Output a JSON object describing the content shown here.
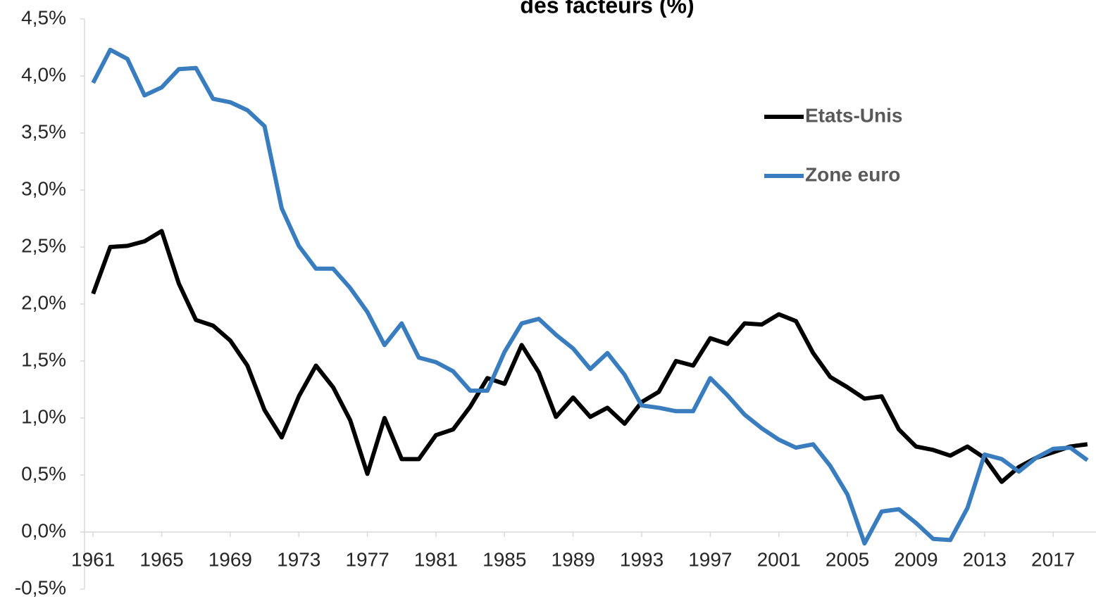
{
  "chart_data": {
    "type": "line",
    "title": "des facteurs (%)",
    "x": [
      1961,
      1962,
      1963,
      1964,
      1965,
      1966,
      1967,
      1968,
      1969,
      1970,
      1971,
      1972,
      1973,
      1974,
      1975,
      1976,
      1977,
      1978,
      1979,
      1980,
      1981,
      1982,
      1983,
      1984,
      1985,
      1986,
      1987,
      1988,
      1989,
      1990,
      1991,
      1992,
      1993,
      1994,
      1995,
      1996,
      1997,
      1998,
      1999,
      2000,
      2001,
      2002,
      2003,
      2004,
      2005,
      2006,
      2007,
      2008,
      2009,
      2010,
      2011,
      2012,
      2013,
      2014,
      2015,
      2016,
      2017,
      2018,
      2019
    ],
    "series": [
      {
        "name": "Etats-Unis",
        "color": "#000000",
        "values": [
          2.09,
          2.5,
          2.51,
          2.55,
          2.64,
          2.18,
          1.86,
          1.81,
          1.68,
          1.46,
          1.07,
          0.83,
          1.19,
          1.46,
          1.27,
          0.98,
          0.51,
          1.0,
          0.64,
          0.64,
          0.85,
          0.9,
          1.1,
          1.35,
          1.3,
          1.64,
          1.4,
          1.01,
          1.18,
          1.01,
          1.09,
          0.95,
          1.14,
          1.23,
          1.5,
          1.46,
          1.7,
          1.65,
          1.83,
          1.82,
          1.91,
          1.85,
          1.57,
          1.36,
          1.27,
          1.17,
          1.19,
          0.9,
          0.75,
          0.72,
          0.67,
          0.75,
          0.65,
          0.44,
          0.57,
          0.65,
          0.7,
          0.75,
          0.77
        ]
      },
      {
        "name": "Zone euro",
        "color": "#3a7dbf",
        "values": [
          3.94,
          4.23,
          4.15,
          3.83,
          3.9,
          4.06,
          4.07,
          3.8,
          3.77,
          3.7,
          3.56,
          2.84,
          2.51,
          2.31,
          2.31,
          2.14,
          1.93,
          1.64,
          1.83,
          1.53,
          1.49,
          1.41,
          1.24,
          1.24,
          1.58,
          1.83,
          1.87,
          1.73,
          1.61,
          1.43,
          1.57,
          1.38,
          1.11,
          1.09,
          1.06,
          1.06,
          1.35,
          1.2,
          1.03,
          0.91,
          0.81,
          0.74,
          0.77,
          0.58,
          0.33,
          -0.1,
          0.18,
          0.2,
          0.08,
          -0.06,
          -0.07,
          0.21,
          0.68,
          0.64,
          0.53,
          0.65,
          0.73,
          0.74,
          0.63
        ]
      }
    ],
    "xlim": [
      1960.5,
      2019.5
    ],
    "xticks": [
      1961,
      1965,
      1969,
      1973,
      1977,
      1981,
      1985,
      1989,
      1993,
      1997,
      2001,
      2005,
      2009,
      2013,
      2017
    ],
    "ylim": [
      -0.5,
      4.5
    ],
    "yticks": [
      {
        "value": -0.5,
        "label": "-0,5%"
      },
      {
        "value": 0,
        "label": "0,0%"
      },
      {
        "value": 0.5,
        "label": "0,5%"
      },
      {
        "value": 1,
        "label": "1,0%"
      },
      {
        "value": 1.5,
        "label": "1,5%"
      },
      {
        "value": 2,
        "label": "2,0%"
      },
      {
        "value": 2.5,
        "label": "2,5%"
      },
      {
        "value": 3,
        "label": "3,0%"
      },
      {
        "value": 3.5,
        "label": "3,5%"
      },
      {
        "value": 4,
        "label": "4,0%"
      },
      {
        "value": 4.5,
        "label": "4,5%"
      }
    ],
    "grid": false,
    "legend": "upper-right"
  }
}
